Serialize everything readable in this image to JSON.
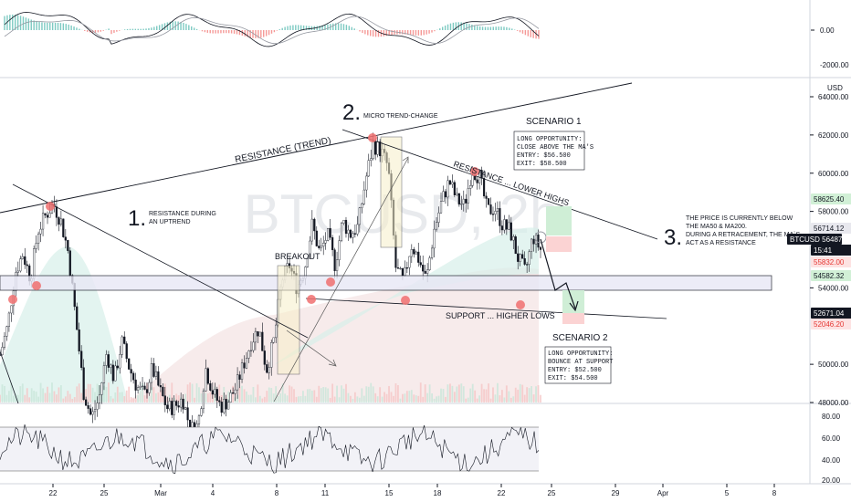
{
  "chart_data": {
    "type": "candlestick",
    "symbol_watermark": "BTCUSD, 2h",
    "currency": "USD",
    "y_ticks": [
      "64000.00",
      "62000.00",
      "60000.00",
      "58000.00",
      "54000.00",
      "50000.00",
      "48000.00"
    ],
    "ylim": [
      48000,
      65200
    ],
    "x_ticks": [
      "22",
      "25",
      "Mar",
      "4",
      "8",
      "11",
      "15",
      "18",
      "22",
      "25",
      "29",
      "Apr",
      "5",
      "8"
    ],
    "price_badges": [
      {
        "label": "58625.40",
        "color": "#d1f0d6",
        "text": "#131722"
      },
      {
        "label": "56714.12",
        "color": "#e8e8ee",
        "text": "#131722"
      },
      {
        "label": "BTCUSD",
        "value": "56487.34",
        "color": "#131722",
        "text": "#ffffff"
      },
      {
        "label": "15:41",
        "color": "#131722",
        "text": "#ffffff"
      },
      {
        "label": "55832.00",
        "color": "#fde2e2",
        "text": "#e53935"
      },
      {
        "label": "54582.32",
        "color": "#d1f0d6",
        "text": "#131722"
      },
      {
        "label": "52671.04",
        "color": "#131722",
        "text": "#ffffff"
      },
      {
        "label": "52046.20",
        "color": "#fde2e2",
        "text": "#e53935"
      }
    ],
    "price_path": [
      50500,
      52000,
      54800,
      55800,
      54500,
      57000,
      57800,
      58400,
      57500,
      55800,
      52200,
      48500,
      47200,
      48200,
      50600,
      49200,
      51200,
      49800,
      48800,
      48400,
      49800,
      48600,
      47700,
      47800,
      48200,
      46600,
      46800,
      49800,
      48500,
      47800,
      48100,
      48800,
      50000,
      51200,
      51900,
      49700,
      51300,
      54400,
      55200,
      54000,
      55000,
      57300,
      55800,
      56800,
      55200,
      57500,
      56800,
      57200,
      59600,
      61500,
      61200,
      60300,
      55000,
      54300,
      56300,
      55500,
      54400,
      57000,
      58500,
      59600,
      58600,
      58300,
      60200,
      59800,
      58000,
      58200,
      57300,
      57000,
      55600,
      54800,
      56700,
      56000
    ],
    "macd_levels": [
      "0.00",
      "-2000.00"
    ],
    "rsi_levels": [
      "80.00",
      "60.00",
      "40.00",
      "20.00"
    ],
    "annotations": {
      "resistance_trend": "RESISTANCE (TREND)",
      "step1_num": "1.",
      "step1_text_l1": "RESISTANCE DURING",
      "step1_text_l2": "AN UPTREND",
      "step2_num": "2.",
      "step2_text": "MICRO TREND-CHANGE",
      "breakout": "BREAKOUT",
      "resistance_lower_highs": "RESISTANCE ... LOWER HIGHS",
      "support_higher_lows": "SUPPORT ... HIGHER LOWS",
      "scenario1_title": "SCENARIO 1",
      "scenario1_box": [
        "LONG OPPORTUNITY:",
        "CLOSE ABOVE THE MA'S",
        "ENTRY: $56.500",
        "EXIT: $58.500"
      ],
      "scenario2_title": "SCENARIO 2",
      "scenario2_box": [
        "LONG OPPORTUNITY:",
        "BOUNCE AT SUPPORT",
        "ENTRY: $52.500",
        "EXIT: $54.500"
      ],
      "step3_num": "3.",
      "step3_text": [
        "THE PRICE IS CURRENTLY BELOW",
        "THE MA50 & MA200.",
        "DURING A RETRACEMENT, THE MA`S",
        "ACT AS A RESISTANCE"
      ]
    },
    "grid": false
  }
}
